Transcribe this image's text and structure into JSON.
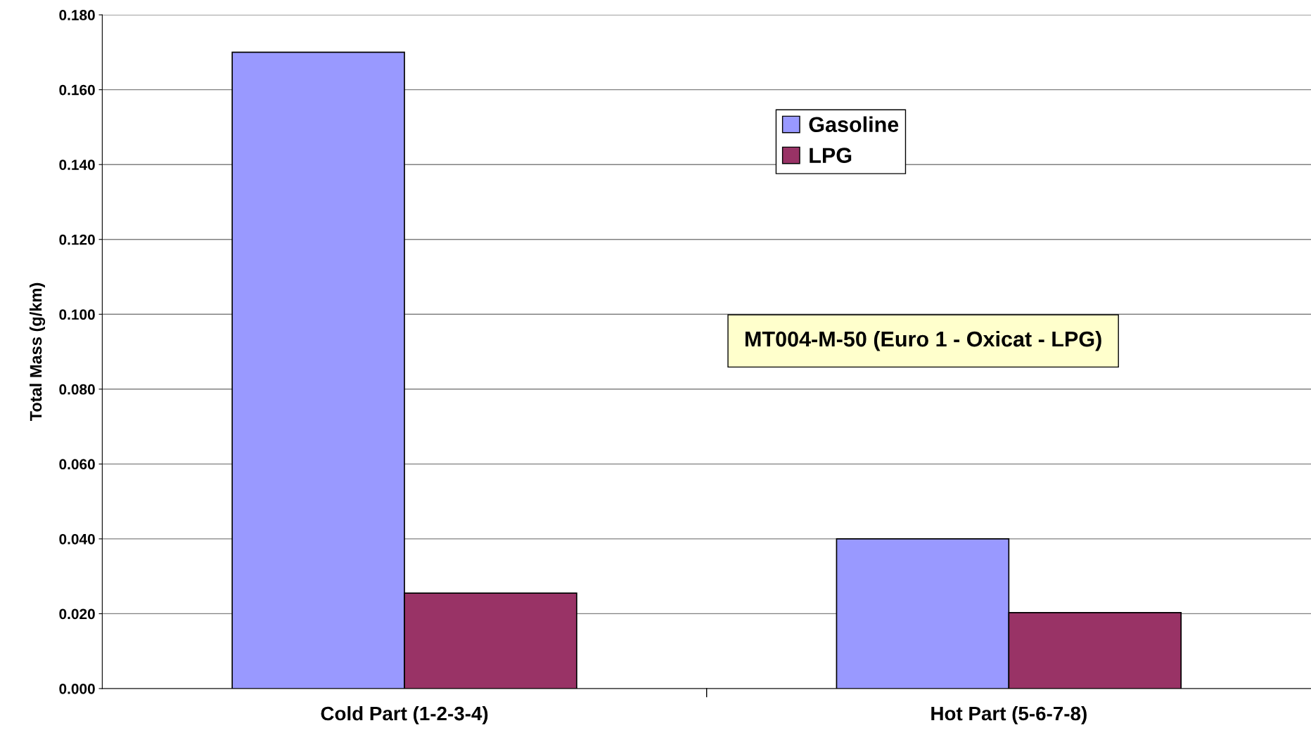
{
  "chart_data": {
    "type": "bar",
    "ylabel": "Total Mass (g/km)",
    "categories": [
      "Cold Part (1-2-3-4)",
      "Hot Part (5-6-7-8)"
    ],
    "series": [
      {
        "name": "Gasoline",
        "color": "#9999ff",
        "values": [
          0.17,
          0.04
        ]
      },
      {
        "name": "LPG",
        "color": "#993366",
        "values": [
          0.0255,
          0.0203
        ]
      }
    ],
    "ylim": [
      0,
      0.18
    ],
    "yticks": [
      {
        "value": 0,
        "label": "0.000"
      },
      {
        "value": 0.02,
        "label": "0.020"
      },
      {
        "value": 0.04,
        "label": "0.040"
      },
      {
        "value": 0.06,
        "label": "0.060"
      },
      {
        "value": 0.08,
        "label": "0.080"
      },
      {
        "value": 0.1,
        "label": "0.100"
      },
      {
        "value": 0.12,
        "label": "0.120"
      },
      {
        "value": 0.14,
        "label": "0.140"
      },
      {
        "value": 0.16,
        "label": "0.160"
      },
      {
        "value": 0.18,
        "label": "0.180"
      }
    ],
    "grid": "y",
    "legend": "top",
    "annotations": [
      "MT004-M-50 (Euro 1 - Oxicat - LPG)"
    ]
  }
}
